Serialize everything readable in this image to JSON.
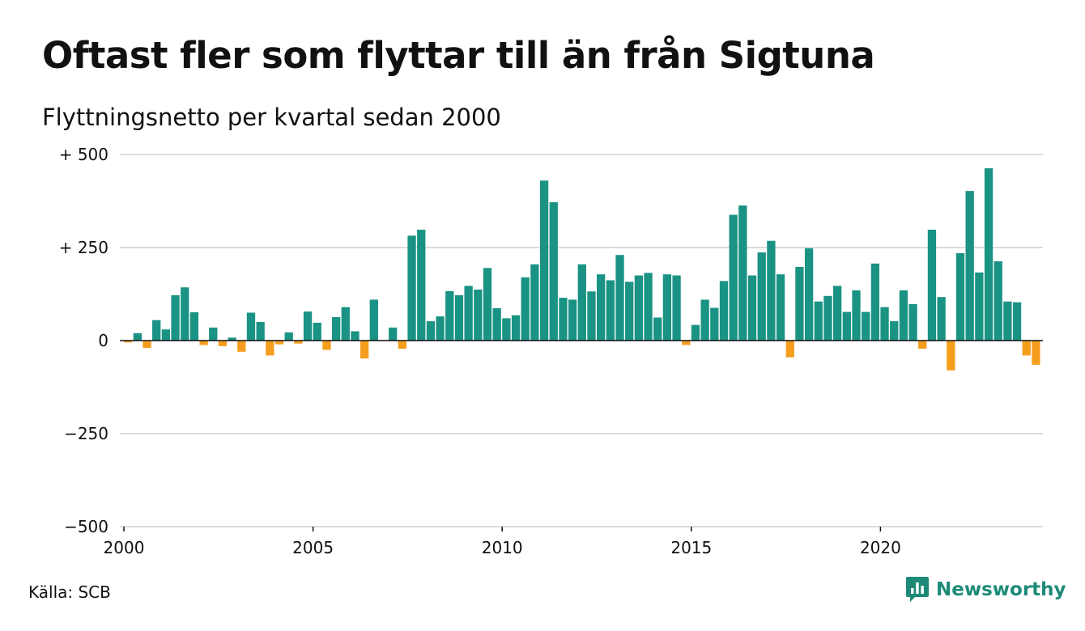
{
  "header": {
    "title": "Oftast fler som flyttar till än från Sigtuna",
    "subtitle": "Flyttningsnetto per kvartal sedan 2000"
  },
  "footer": {
    "source": "Källa: SCB",
    "brand": "Newsworthy"
  },
  "colors": {
    "positive": "#1a9384",
    "negative": "#f59e1e",
    "brand": "#1d8a78"
  },
  "chart_data": {
    "type": "bar",
    "title": "Oftast fler som flyttar till än från Sigtuna",
    "subtitle": "Flyttningsnetto per kvartal sedan 2000",
    "xlabel": "",
    "ylabel": "",
    "ylim": [
      -500,
      500
    ],
    "yticks": [
      500,
      250,
      0,
      -250,
      -500
    ],
    "ytick_labels": [
      "+ 500",
      "+ 250",
      "0",
      "−250",
      "−500"
    ],
    "xticks": [
      2000,
      2005,
      2010,
      2015,
      2020
    ],
    "xtick_labels": [
      "2000",
      "2005",
      "2010",
      "2015",
      "2020"
    ],
    "x_start_year": 2000,
    "quarters_per_year": 4,
    "grid": true,
    "values": [
      -5,
      20,
      -20,
      55,
      30,
      122,
      143,
      76,
      -12,
      35,
      -15,
      8,
      -30,
      75,
      50,
      -40,
      -10,
      22,
      -8,
      78,
      48,
      -25,
      63,
      90,
      25,
      -48,
      110,
      0,
      35,
      -22,
      282,
      298,
      52,
      65,
      133,
      122,
      147,
      137,
      195,
      87,
      60,
      68,
      170,
      205,
      430,
      372,
      115,
      110,
      205,
      132,
      178,
      162,
      230,
      158,
      175,
      182,
      62,
      178,
      175,
      -12,
      42,
      110,
      88,
      160,
      338,
      363,
      175,
      237,
      268,
      178,
      -45,
      198,
      248,
      105,
      120,
      147,
      77,
      135,
      77,
      207,
      90,
      52,
      135,
      98,
      -22,
      298,
      117,
      -80,
      235,
      402,
      183,
      463,
      213,
      105,
      103,
      -40,
      -65
    ]
  }
}
